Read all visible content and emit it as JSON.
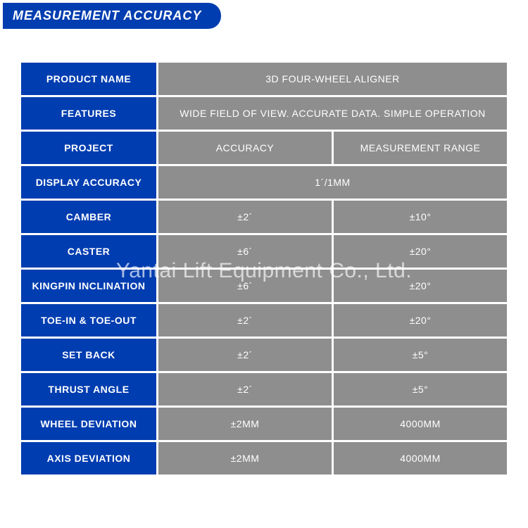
{
  "header": {
    "title": "MEASUREMENT ACCURACY"
  },
  "colors": {
    "brand_blue": "#003db0",
    "cell_gray": "#8e8e8e",
    "text": "#ffffff",
    "background": "#ffffff"
  },
  "table": {
    "product_name_label": "PRODUCT NAME",
    "product_name_value": "3D FOUR-WHEEL ALIGNER",
    "features_label": "FEATURES",
    "features_value": "WIDE FIELD OF VIEW. ACCURATE DATA. SIMPLE OPERATION",
    "project_label": "PROJECT",
    "col_accuracy": "ACCURACY",
    "col_range": "MEASUREMENT RANGE",
    "display_accuracy_label": "DISPLAY ACCURACY",
    "display_accuracy_value": "1´/1MM",
    "rows": [
      {
        "label": "CAMBER",
        "accuracy": "±2´",
        "range": "±10°"
      },
      {
        "label": "CASTER",
        "accuracy": "±6´",
        "range": "±20°"
      },
      {
        "label": "KINGPIN INCLINATION",
        "accuracy": "±6´",
        "range": "±20°"
      },
      {
        "label": "TOE-IN & TOE-OUT",
        "accuracy": "±2´",
        "range": "±20°"
      },
      {
        "label": "SET BACK",
        "accuracy": "±2´",
        "range": "±5°"
      },
      {
        "label": "THRUST ANGLE",
        "accuracy": "±2´",
        "range": "±5°"
      },
      {
        "label": "WHEEL DEVIATION",
        "accuracy": "±2MM",
        "range": "4000MM"
      },
      {
        "label": "AXIS DEVIATION",
        "accuracy": "±2MM",
        "range": "4000MM"
      }
    ]
  },
  "watermark": "Yantai Lift Equipment Co., Ltd."
}
